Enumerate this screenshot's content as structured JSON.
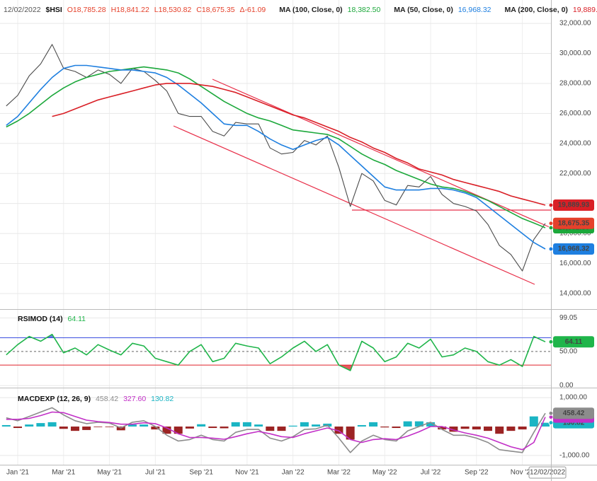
{
  "header": {
    "date": "12/02/2022",
    "open": "O18,785.28",
    "high": "H18,841.22",
    "low": "L18,530.82",
    "close": "C18,675.35",
    "change": "Δ-61.09"
  },
  "chart_data": [
    {
      "type": "line",
      "ylim": [
        12960,
        33560
      ],
      "yticks": [
        {
          "value": 14000,
          "label": "14,000.00"
        },
        {
          "value": 16000,
          "label": "16,000.00"
        },
        {
          "value": 18000,
          "label": "18,000.00"
        },
        {
          "value": 20000,
          "label": "20,000.00"
        },
        {
          "value": 22000,
          "label": "22,000.00"
        },
        {
          "value": 24000,
          "label": "24,000.00"
        },
        {
          "value": 26000,
          "label": "26,000.00"
        },
        {
          "value": 28000,
          "label": "28,000.00"
        },
        {
          "value": 30000,
          "label": "30,000.00"
        },
        {
          "value": 32000,
          "label": "32,000.00"
        }
      ],
      "series": [
        {
          "name": "$HSI",
          "color": "#4a4a4a",
          "box_color": "#e5412b",
          "values": [
            26500,
            27200,
            28500,
            29300,
            30600,
            29000,
            28800,
            28400,
            28900,
            28600,
            28000,
            29000,
            28800,
            28200,
            27500,
            26000,
            25800,
            25800,
            24800,
            24500,
            25400,
            25300,
            25300,
            23700,
            23300,
            23400,
            24200,
            23900,
            24500,
            22400,
            19800,
            22000,
            21500,
            20200,
            19900,
            21200,
            21100,
            21800,
            20600,
            20000,
            19800,
            19500,
            18600,
            17200,
            16600,
            15500,
            17600,
            18675.35
          ],
          "value_labels": [
            null,
            null,
            null,
            null,
            null,
            null,
            null,
            null,
            null,
            null,
            null,
            null,
            null,
            null,
            null,
            null,
            null,
            null,
            null,
            null,
            null,
            null,
            null,
            null,
            null,
            null,
            null,
            null,
            null,
            null,
            null,
            null,
            null,
            null,
            null,
            null,
            null,
            null,
            null,
            null,
            null,
            null,
            null,
            null,
            null,
            null,
            null,
            "18,675.35"
          ]
        },
        {
          "name": "MA (100, Close, 0)",
          "color": "#1ca83b",
          "values": [
            25100,
            25500,
            26000,
            26600,
            27200,
            27700,
            28100,
            28400,
            28600,
            28800,
            28900,
            29000,
            29100,
            29000,
            28900,
            28700,
            28300,
            27800,
            27300,
            26800,
            26400,
            26000,
            25700,
            25500,
            25200,
            24900,
            24800,
            24700,
            24600,
            24300,
            23800,
            23300,
            22900,
            22600,
            22200,
            21900,
            21600,
            21300,
            21100,
            21000,
            20800,
            20500,
            20200,
            19800,
            19400,
            19000,
            18700,
            18382.5
          ],
          "value_labels": [
            null,
            null,
            null,
            null,
            null,
            null,
            null,
            null,
            null,
            null,
            null,
            null,
            null,
            null,
            null,
            null,
            null,
            null,
            null,
            null,
            null,
            null,
            null,
            null,
            null,
            null,
            null,
            null,
            null,
            null,
            null,
            null,
            null,
            null,
            null,
            null,
            null,
            null,
            null,
            null,
            null,
            null,
            null,
            null,
            null,
            null,
            null,
            "18,382.50"
          ]
        },
        {
          "name": "MA (50, Close, 0)",
          "color": "#1e7fe0",
          "values": [
            25200,
            25800,
            26700,
            27600,
            28400,
            29000,
            29200,
            29200,
            29100,
            29000,
            28900,
            28900,
            28800,
            28700,
            28400,
            27900,
            27300,
            26700,
            26000,
            25300,
            25200,
            25200,
            24800,
            24300,
            23900,
            23600,
            23900,
            24200,
            24400,
            23900,
            23200,
            22500,
            21800,
            21100,
            20900,
            20900,
            20900,
            21000,
            21000,
            20900,
            20700,
            20400,
            19800,
            19200,
            18600,
            18000,
            17400,
            16968.32
          ],
          "value_labels": [
            null,
            null,
            null,
            null,
            null,
            null,
            null,
            null,
            null,
            null,
            null,
            null,
            null,
            null,
            null,
            null,
            null,
            null,
            null,
            null,
            null,
            null,
            null,
            null,
            null,
            null,
            null,
            null,
            null,
            null,
            null,
            null,
            null,
            null,
            null,
            null,
            null,
            null,
            null,
            null,
            null,
            null,
            null,
            null,
            null,
            null,
            null,
            "16,968.32"
          ]
        },
        {
          "name": "MA (200, Close, 0)",
          "color": "#d91f26",
          "values": [
            null,
            null,
            null,
            null,
            25800,
            26000,
            26300,
            26600,
            26900,
            27100,
            27300,
            27500,
            27700,
            27900,
            28000,
            28000,
            28000,
            27900,
            27800,
            27600,
            27400,
            27100,
            26800,
            26500,
            26200,
            25900,
            25700,
            25400,
            25100,
            24800,
            24400,
            24100,
            23700,
            23400,
            23000,
            22700,
            22300,
            22100,
            21900,
            21600,
            21400,
            21200,
            21000,
            20800,
            20500,
            20300,
            20100,
            19889.93
          ],
          "value_labels": [
            null,
            null,
            null,
            null,
            null,
            null,
            null,
            null,
            null,
            null,
            null,
            null,
            null,
            null,
            null,
            null,
            null,
            null,
            null,
            null,
            null,
            null,
            null,
            null,
            null,
            null,
            null,
            null,
            null,
            null,
            null,
            null,
            null,
            null,
            null,
            null,
            null,
            null,
            null,
            null,
            null,
            null,
            null,
            null,
            null,
            null,
            null,
            "19,889.93"
          ]
        }
      ]
    },
    {
      "type": "line",
      "title": "RSIMOD (14)",
      "ylim": [
        -3,
        111
      ],
      "yticks": [
        {
          "value": 0,
          "label": "0.00"
        },
        {
          "value": 50,
          "label": "50.00"
        },
        99.05
      ],
      "levels": [
        {
          "value": 70,
          "color": "#3b4fe0"
        },
        {
          "value": 30,
          "color": "#e0202a"
        }
      ],
      "series": [
        {
          "color": "#1fb54a",
          "values": [
            45,
            60,
            72,
            65,
            75,
            48,
            55,
            45,
            60,
            52,
            45,
            62,
            58,
            40,
            35,
            30,
            50,
            60,
            35,
            40,
            62,
            58,
            55,
            32,
            42,
            55,
            65,
            50,
            60,
            30,
            22,
            65,
            55,
            35,
            42,
            62,
            55,
            68,
            42,
            45,
            55,
            50,
            35,
            30,
            38,
            28,
            72,
            64.11
          ]
        }
      ]
    },
    {
      "type": "line",
      "title": "MACDEXP (12, 26, 9)",
      "ylim": [
        -1320,
        1320
      ],
      "yticks": [
        {
          "value": 1000,
          "label": "1,000.00"
        },
        {
          "value": -1000,
          "label": "-1,000.00"
        }
      ],
      "categories": [
        null,
        "Jan '21",
        null,
        null,
        null,
        "Mar '21",
        null,
        null,
        null,
        "May '21",
        null,
        null,
        null,
        "Jul '21",
        null,
        null,
        null,
        "Sep '21",
        null,
        null,
        null,
        "Nov '21",
        null,
        null,
        null,
        "Jan '22",
        null,
        null,
        null,
        "Mar '22",
        null,
        null,
        null,
        "May '22",
        null,
        null,
        null,
        "Jul '22",
        null,
        null,
        null,
        "Sep '22",
        null,
        null,
        null,
        "Nov '22",
        null,
        "12/02/2022"
      ],
      "series": [
        {
          "color": "#8c8c8c",
          "values": [
            300,
            200,
            350,
            500,
            650,
            400,
            200,
            100,
            150,
            120,
            -50,
            150,
            200,
            0,
            -300,
            -500,
            -450,
            -300,
            -450,
            -500,
            -200,
            -100,
            -100,
            -400,
            -500,
            -350,
            -100,
            -80,
            50,
            -400,
            -900,
            -500,
            -300,
            -450,
            -500,
            -150,
            0,
            150,
            -100,
            -300,
            -300,
            -400,
            -550,
            -800,
            -850,
            -900,
            -200,
            458.42
          ]
        },
        {
          "color": "#c22fc7",
          "values": [
            250,
            250,
            280,
            380,
            500,
            480,
            350,
            220,
            170,
            140,
            80,
            80,
            130,
            100,
            -50,
            -250,
            -380,
            -380,
            -400,
            -440,
            -350,
            -250,
            -170,
            -250,
            -350,
            -380,
            -250,
            -150,
            -50,
            -150,
            -450,
            -550,
            -450,
            -420,
            -450,
            -330,
            -180,
            0,
            0,
            -120,
            -220,
            -300,
            -400,
            -550,
            -700,
            -800,
            -550,
            327.6
          ],
          "value_labels": [
            null,
            null,
            null,
            null,
            null,
            null,
            null,
            null,
            null,
            null,
            null,
            null,
            null,
            null,
            null,
            null,
            null,
            null,
            null,
            null,
            null,
            null,
            null,
            null,
            null,
            null,
            null,
            null,
            null,
            null,
            null,
            null,
            null,
            null,
            null,
            null,
            null,
            null,
            null,
            null,
            null,
            null,
            null,
            null,
            null,
            null,
            null,
            "327.60"
          ]
        },
        {
          "type": "bar",
          "color": "#1bb5c4",
          "negative_color": "#9c2424",
          "values": [
            50,
            -50,
            70,
            120,
            150,
            -80,
            -150,
            -120,
            -20,
            -20,
            -130,
            70,
            70,
            -100,
            -250,
            -250,
            -70,
            80,
            -50,
            -60,
            150,
            150,
            70,
            -150,
            -150,
            30,
            150,
            70,
            100,
            -250,
            -450,
            50,
            150,
            -30,
            -50,
            180,
            180,
            150,
            -100,
            -180,
            -80,
            -100,
            -150,
            -250,
            -150,
            -100,
            350,
            130.82
          ]
        }
      ]
    }
  ]
}
